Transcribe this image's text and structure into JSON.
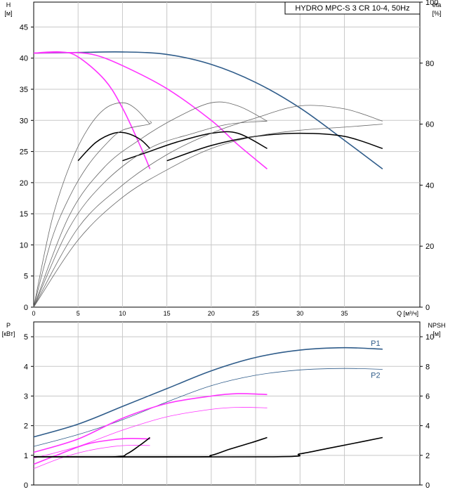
{
  "chart_data": [
    {
      "type": "line",
      "legend_title": "HYDRO MPC-S 3 CR 10-4, 50Hz",
      "left_axis": {
        "label_top": "H",
        "label_unit": "[м]",
        "ylim": [
          0,
          49
        ],
        "ticks": [
          0,
          5,
          10,
          15,
          20,
          25,
          30,
          35,
          40,
          45
        ]
      },
      "right_axis": {
        "label_top": "eta",
        "label_unit": "[%]",
        "ylim": [
          0,
          100
        ],
        "ticks": [
          0,
          20,
          40,
          60,
          80,
          100
        ]
      },
      "x_axis": {
        "label": "Q [м³/ч]",
        "xlim": [
          0,
          43.5
        ],
        "ticks": [
          0,
          5,
          10,
          15,
          20,
          25,
          30,
          35
        ]
      },
      "grid": true,
      "series": [
        {
          "color": "#2f5c8a",
          "axis": "left",
          "points": [
            [
              0,
              40.8
            ],
            [
              5,
              40.9
            ],
            [
              10,
              41.0
            ],
            [
              15,
              40.6
            ],
            [
              20,
              39.0
            ],
            [
              25,
              36.1
            ],
            [
              30,
              32.0
            ],
            [
              35,
              26.8
            ],
            [
              39.3,
              22.2
            ]
          ]
        },
        {
          "color": "#ff33ff",
          "axis": "left",
          "points": [
            [
              0,
              40.8
            ],
            [
              3.3,
              40.9
            ],
            [
              6.6,
              40.6
            ],
            [
              10,
              38.8
            ],
            [
              15,
              35.1
            ],
            [
              20,
              30.0
            ],
            [
              23,
              26.1
            ],
            [
              26.3,
              22.2
            ]
          ]
        },
        {
          "color": "#ff33ff",
          "axis": "left",
          "points": [
            [
              0,
              40.8
            ],
            [
              3,
              41.0
            ],
            [
              5,
              40.2
            ],
            [
              8,
              36.5
            ],
            [
              10,
              32.0
            ],
            [
              12,
              25.9
            ],
            [
              13.1,
              22.2
            ]
          ]
        },
        {
          "color": "#000000",
          "axis": "right",
          "width": 1.5,
          "points": [
            [
              5,
              48
            ],
            [
              7,
              54
            ],
            [
              9,
              57
            ],
            [
              10.5,
              57
            ],
            [
              12,
              55
            ],
            [
              13.1,
              52
            ]
          ]
        },
        {
          "color": "#000000",
          "axis": "right",
          "width": 1.5,
          "points": [
            [
              10,
              48
            ],
            [
              13,
              51
            ],
            [
              16,
              54
            ],
            [
              20,
              57
            ],
            [
              23,
              57
            ],
            [
              26.3,
              52
            ]
          ]
        },
        {
          "color": "#000000",
          "axis": "right",
          "width": 1.5,
          "points": [
            [
              15,
              48
            ],
            [
              20,
              53
            ],
            [
              25,
              56
            ],
            [
              30,
              57
            ],
            [
              35,
              56
            ],
            [
              39.3,
              52
            ]
          ]
        },
        {
          "color": "#666666",
          "axis": "right",
          "width": 0.8,
          "points": [
            [
              0,
              0
            ],
            [
              2,
              28
            ],
            [
              4,
              46
            ],
            [
              6,
              58
            ],
            [
              8,
              65
            ],
            [
              10,
              67
            ],
            [
              11.5,
              65
            ],
            [
              13.1,
              60
            ]
          ]
        },
        {
          "color": "#666666",
          "axis": "right",
          "width": 0.8,
          "points": [
            [
              0,
              0
            ],
            [
              2,
              22
            ],
            [
              4,
              36
            ],
            [
              6,
              46
            ],
            [
              8,
              53
            ],
            [
              10,
              58
            ],
            [
              13,
              60
            ],
            [
              13.1,
              61
            ]
          ]
        },
        {
          "color": "#666666",
          "axis": "right",
          "width": 0.8,
          "points": [
            [
              0,
              0
            ],
            [
              4,
              30
            ],
            [
              8,
              46
            ],
            [
              12,
              55
            ],
            [
              16,
              62
            ],
            [
              20,
              67
            ],
            [
              23,
              66
            ],
            [
              26.3,
              61
            ]
          ]
        },
        {
          "color": "#666666",
          "axis": "right",
          "width": 0.8,
          "points": [
            [
              0,
              0
            ],
            [
              4,
              26
            ],
            [
              8,
              41
            ],
            [
              13,
              52
            ],
            [
              18,
              57
            ],
            [
              22,
              60
            ],
            [
              26.3,
              61
            ]
          ]
        },
        {
          "color": "#666666",
          "axis": "right",
          "width": 0.8,
          "points": [
            [
              0,
              0
            ],
            [
              5,
              26
            ],
            [
              10,
              40
            ],
            [
              15,
              50
            ],
            [
              20,
              57
            ],
            [
              25,
              62
            ],
            [
              30,
              66
            ],
            [
              35,
              65
            ],
            [
              39.3,
              61
            ]
          ]
        },
        {
          "color": "#666666",
          "axis": "right",
          "width": 0.8,
          "points": [
            [
              0,
              0
            ],
            [
              5,
              22
            ],
            [
              10,
              36
            ],
            [
              15,
              45
            ],
            [
              20,
              52
            ],
            [
              25,
              56
            ],
            [
              30,
              58
            ],
            [
              35,
              59
            ],
            [
              39.3,
              60
            ]
          ]
        }
      ]
    },
    {
      "type": "line",
      "left_axis": {
        "label_top": "P",
        "label_unit": "[кВт]",
        "ylim": [
          0,
          5.5
        ],
        "ticks": [
          0,
          1,
          2,
          3,
          4,
          5
        ]
      },
      "right_axis": {
        "label_top": "NPSH",
        "label_unit": "[м]",
        "ylim": [
          0,
          11
        ],
        "ticks": [
          0,
          2,
          4,
          6,
          8,
          10
        ]
      },
      "x_axis": {
        "xlim": [
          0,
          43.5
        ],
        "ticks": [
          0,
          5,
          10,
          15,
          20,
          25,
          30,
          35
        ]
      },
      "grid": true,
      "series": [
        {
          "name": "P1",
          "color": "#2f5c8a",
          "axis": "left",
          "points": [
            [
              0,
              1.62
            ],
            [
              5,
              2.05
            ],
            [
              10,
              2.65
            ],
            [
              15,
              3.25
            ],
            [
              20,
              3.85
            ],
            [
              25,
              4.3
            ],
            [
              30,
              4.55
            ],
            [
              35,
              4.63
            ],
            [
              39.3,
              4.58
            ]
          ]
        },
        {
          "name": "P2",
          "color": "#2f5c8a",
          "axis": "left",
          "width": 0.8,
          "points": [
            [
              0,
              1.3
            ],
            [
              5,
              1.7
            ],
            [
              10,
              2.2
            ],
            [
              15,
              2.8
            ],
            [
              20,
              3.35
            ],
            [
              25,
              3.7
            ],
            [
              30,
              3.88
            ],
            [
              35,
              3.93
            ],
            [
              39.3,
              3.9
            ]
          ]
        },
        {
          "color": "#ff33ff",
          "axis": "left",
          "points": [
            [
              0,
              1.1
            ],
            [
              5,
              1.55
            ],
            [
              10,
              2.25
            ],
            [
              15,
              2.75
            ],
            [
              20,
              3.0
            ],
            [
              23,
              3.08
            ],
            [
              26.3,
              3.05
            ]
          ]
        },
        {
          "color": "#ff33ff",
          "axis": "left",
          "width": 0.8,
          "points": [
            [
              0,
              0.9
            ],
            [
              5,
              1.3
            ],
            [
              10,
              1.85
            ],
            [
              15,
              2.3
            ],
            [
              20,
              2.55
            ],
            [
              23,
              2.62
            ],
            [
              26.3,
              2.6
            ]
          ]
        },
        {
          "color": "#ff33ff",
          "axis": "left",
          "points": [
            [
              0,
              0.7
            ],
            [
              3,
              1.05
            ],
            [
              6,
              1.38
            ],
            [
              9,
              1.53
            ],
            [
              11,
              1.57
            ],
            [
              13.1,
              1.55
            ]
          ]
        },
        {
          "color": "#ff33ff",
          "axis": "left",
          "width": 0.8,
          "points": [
            [
              0,
              0.55
            ],
            [
              3,
              0.9
            ],
            [
              6,
              1.15
            ],
            [
              9,
              1.3
            ],
            [
              11,
              1.34
            ],
            [
              13.1,
              1.33
            ]
          ]
        },
        {
          "color": "#000000",
          "axis": "right",
          "points": [
            [
              0,
              1.9
            ],
            [
              9,
              1.9
            ],
            [
              10.5,
              2.1
            ],
            [
              12,
              2.7
            ],
            [
              13.1,
              3.2
            ]
          ]
        },
        {
          "color": "#000000",
          "axis": "right",
          "points": [
            [
              0,
              1.9
            ],
            [
              18,
              1.9
            ],
            [
              20,
              2.0
            ],
            [
              22,
              2.4
            ],
            [
              24.5,
              2.85
            ],
            [
              26.3,
              3.2
            ]
          ]
        },
        {
          "color": "#000000",
          "axis": "right",
          "points": [
            [
              0,
              1.9
            ],
            [
              27,
              1.9
            ],
            [
              30,
              2.1
            ],
            [
              33,
              2.45
            ],
            [
              36,
              2.8
            ],
            [
              39.3,
              3.2
            ]
          ]
        }
      ]
    }
  ]
}
